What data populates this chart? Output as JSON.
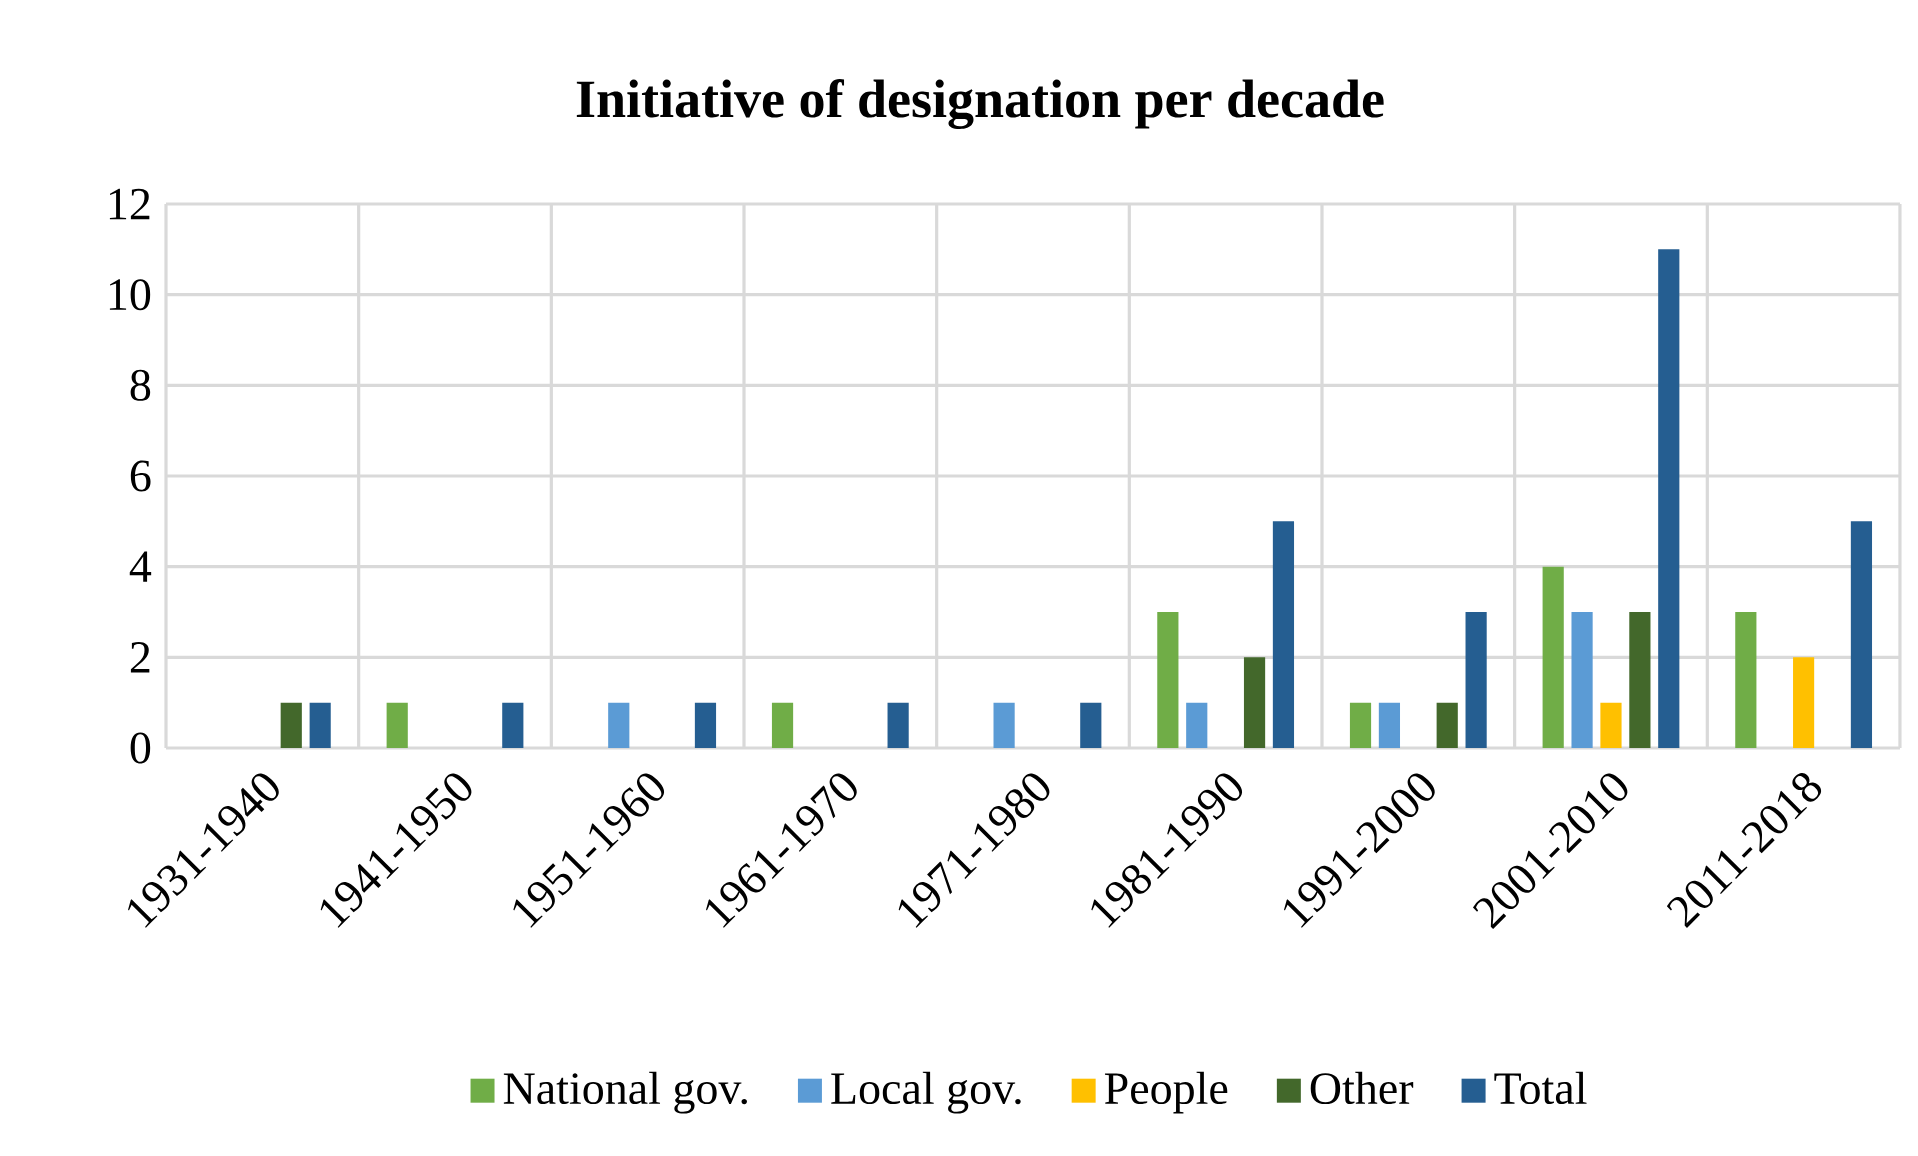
{
  "chart_data": {
    "type": "bar",
    "title": "Initiative of designation per decade",
    "categories": [
      "1931-1940",
      "1941-1950",
      "1951-1960",
      "1961-1970",
      "1971-1980",
      "1981-1990",
      "1991-2000",
      "2001-2010",
      "2011-2018"
    ],
    "series": [
      {
        "name": "National gov.",
        "color": "#70ad47",
        "values": [
          null,
          1,
          null,
          1,
          null,
          3,
          1,
          4,
          3
        ]
      },
      {
        "name": "Local gov.",
        "color": "#5b9bd5",
        "values": [
          null,
          null,
          1,
          null,
          1,
          1,
          1,
          3,
          null
        ]
      },
      {
        "name": "People",
        "color": "#ffc000",
        "values": [
          null,
          null,
          null,
          null,
          null,
          null,
          null,
          1,
          2
        ]
      },
      {
        "name": "Other",
        "color": "#43682b",
        "values": [
          1,
          null,
          null,
          null,
          null,
          2,
          1,
          3,
          null
        ]
      },
      {
        "name": "Total",
        "color": "#255e91",
        "values": [
          1,
          1,
          1,
          1,
          1,
          5,
          3,
          11,
          5
        ]
      }
    ],
    "ylim": [
      0,
      12
    ],
    "yticks": [
      0,
      2,
      4,
      6,
      8,
      10,
      12
    ],
    "grid": true,
    "legend": "bottom"
  }
}
